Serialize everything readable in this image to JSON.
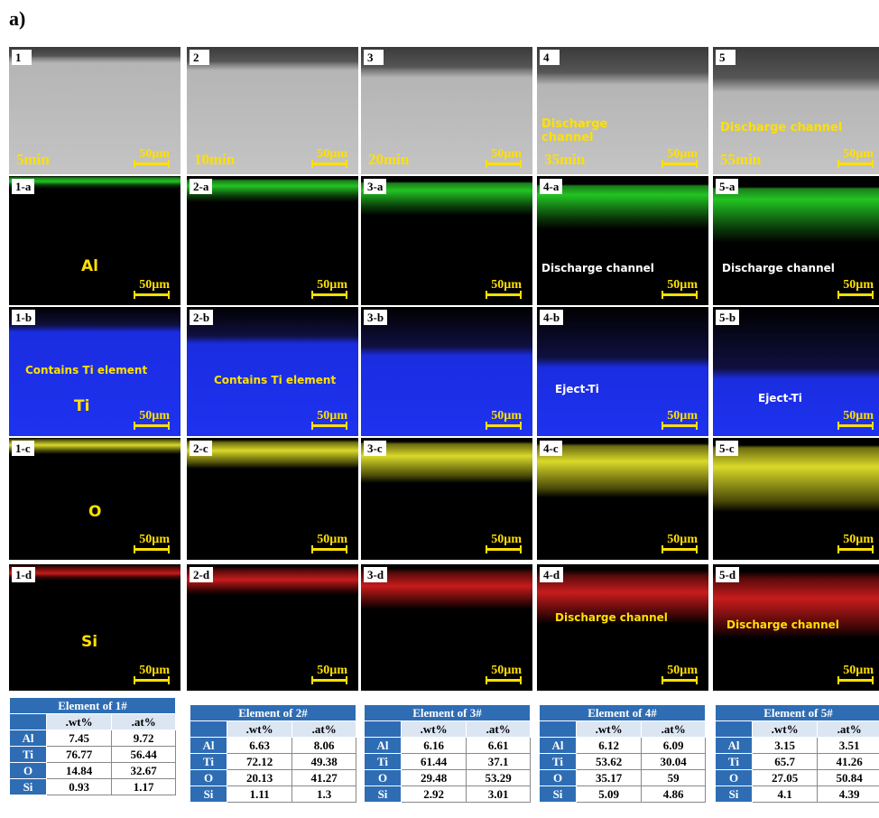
{
  "figure_label": "a)",
  "rows": [
    {
      "panels": [
        {
          "label": "1",
          "time": "5min",
          "scale": "50µm"
        },
        {
          "label": "2",
          "time": "10min",
          "scale": "50µm"
        },
        {
          "label": "3",
          "time": "20min",
          "scale": "50µm"
        },
        {
          "label": "4",
          "time": "35min",
          "scale": "50µm",
          "annotation": "Discharge channel"
        },
        {
          "label": "5",
          "time": "55min",
          "scale": "50µm",
          "annotation": "Discharge channel"
        }
      ]
    },
    {
      "panels": [
        {
          "label": "1-a",
          "element": "Al",
          "scale": "50µm"
        },
        {
          "label": "2-a",
          "scale": "50µm"
        },
        {
          "label": "3-a",
          "scale": "50µm"
        },
        {
          "label": "4-a",
          "scale": "50µm",
          "annotation": "Discharge channel"
        },
        {
          "label": "5-a",
          "scale": "50µm",
          "annotation": "Discharge channel"
        }
      ]
    },
    {
      "panels": [
        {
          "label": "1-b",
          "element": "Ti",
          "scale": "50µm",
          "annotation": "Contains Ti element"
        },
        {
          "label": "2-b",
          "scale": "50µm",
          "annotation": "Contains Ti element"
        },
        {
          "label": "3-b",
          "scale": "50µm"
        },
        {
          "label": "4-b",
          "scale": "50µm",
          "annotation": "Eject-Ti"
        },
        {
          "label": "5-b",
          "scale": "50µm",
          "annotation": "Eject-Ti"
        }
      ]
    },
    {
      "panels": [
        {
          "label": "1-c",
          "element": "O",
          "scale": "50µm"
        },
        {
          "label": "2-c",
          "scale": "50µm"
        },
        {
          "label": "3-c",
          "scale": "50µm"
        },
        {
          "label": "4-c",
          "scale": "50µm"
        },
        {
          "label": "5-c",
          "scale": "50µm"
        }
      ]
    },
    {
      "panels": [
        {
          "label": "1-d",
          "element": "Si",
          "scale": "50µm"
        },
        {
          "label": "2-d",
          "scale": "50µm"
        },
        {
          "label": "3-d",
          "scale": "50µm"
        },
        {
          "label": "4-d",
          "scale": "50µm",
          "annotation": "Discharge channel"
        },
        {
          "label": "5-d",
          "scale": "50µm",
          "annotation": "Discharge channel"
        }
      ]
    }
  ],
  "tables": [
    {
      "title": "Element of 1#",
      "columns": [
        ".wt%",
        ".at%"
      ],
      "rows": [
        [
          "Al",
          7.45,
          9.72
        ],
        [
          "Ti",
          76.77,
          56.44
        ],
        [
          "O",
          14.84,
          32.67
        ],
        [
          "Si",
          0.93,
          1.17
        ]
      ]
    },
    {
      "title": "Element of 2#",
      "columns": [
        ".wt%",
        ".at%"
      ],
      "rows": [
        [
          "Al",
          6.63,
          8.06
        ],
        [
          "Ti",
          72.12,
          49.38
        ],
        [
          "O",
          20.13,
          41.27
        ],
        [
          "Si",
          1.11,
          1.3
        ]
      ]
    },
    {
      "title": "Element of 3#",
      "columns": [
        ".wt%",
        ".at%"
      ],
      "rows": [
        [
          "Al",
          6.16,
          6.61
        ],
        [
          "Ti",
          61.44,
          37.1
        ],
        [
          "O",
          29.48,
          53.29
        ],
        [
          "Si",
          2.92,
          3.01
        ]
      ]
    },
    {
      "title": "Element of 4#",
      "columns": [
        ".wt%",
        ".at%"
      ],
      "rows": [
        [
          "Al",
          6.12,
          6.09
        ],
        [
          "Ti",
          53.62,
          30.04
        ],
        [
          "O",
          35.17,
          59
        ],
        [
          "Si",
          5.09,
          4.86
        ]
      ]
    },
    {
      "title": "Element of 5#",
      "columns": [
        ".wt%",
        ".at%"
      ],
      "rows": [
        [
          "Al",
          3.15,
          3.51
        ],
        [
          "Ti",
          65.7,
          41.26
        ],
        [
          "O",
          27.05,
          50.84
        ],
        [
          "Si",
          4.1,
          4.39
        ]
      ]
    }
  ]
}
